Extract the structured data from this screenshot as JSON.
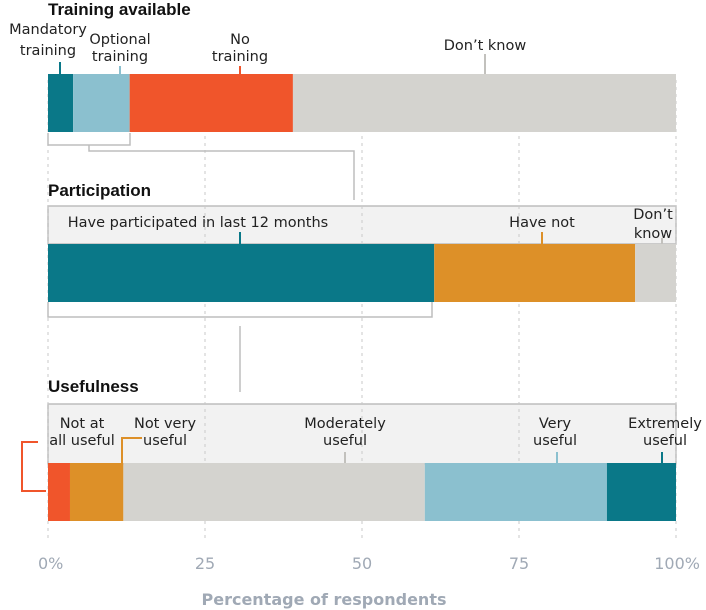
{
  "chart_data": {
    "type": "bar",
    "xlabel": "Percentage of respondents",
    "xlim": [
      0,
      100
    ],
    "xticks": [
      0,
      25,
      50,
      75,
      100
    ],
    "xtick_labels": [
      "0%",
      "25",
      "50",
      "75",
      "100%"
    ],
    "grid": true,
    "panels": [
      {
        "title": "Training available",
        "segments": [
          {
            "label": "Mandatory training",
            "value": 4,
            "color": "#0a7888"
          },
          {
            "label": "Optional training",
            "value": 9,
            "color": "#8bc0cf"
          },
          {
            "label": "No training",
            "value": 26,
            "color": "#f0552b"
          },
          {
            "label": "Don’t know",
            "value": 61,
            "color": "#d4d3cf"
          }
        ]
      },
      {
        "title": "Participation",
        "segments": [
          {
            "label": "Have participated in last 12 months",
            "value": 61.5,
            "color": "#0a7888"
          },
          {
            "label": "Have not",
            "value": 32,
            "color": "#dd9028"
          },
          {
            "label": "Don’t know",
            "value": 6.5,
            "color": "#d4d3cf"
          }
        ]
      },
      {
        "title": "Usefulness",
        "segments": [
          {
            "label": "Not at all useful",
            "value": 3.5,
            "color": "#f0552b"
          },
          {
            "label": "Not very useful",
            "value": 8.5,
            "color": "#dd9028"
          },
          {
            "label": "Moderately useful",
            "value": 48,
            "color": "#d4d3cf"
          },
          {
            "label": "Very useful",
            "value": 29,
            "color": "#8bc0cf"
          },
          {
            "label": "Extremely useful",
            "value": 11,
            "color": "#0a7888"
          }
        ]
      }
    ]
  },
  "colors": {
    "connector": "#bdbdbd",
    "tick_label": "#a0a9b5",
    "marker_not_at_all": "#f0552b"
  }
}
